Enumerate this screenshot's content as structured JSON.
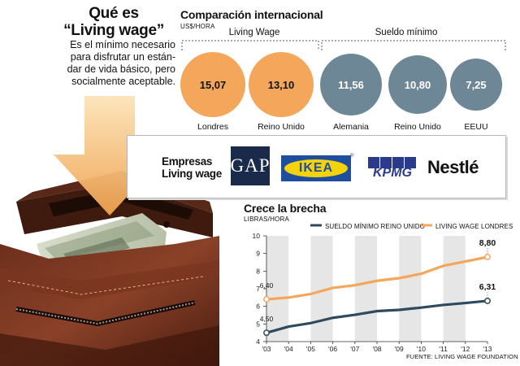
{
  "intro": {
    "title_line1": "Qué es",
    "title_line2": "“Living wage”",
    "description_lines": [
      "Es el mínimo necesario",
      "para disfrutar un están-",
      "dar de vida básico, pero",
      "socialmente aceptable."
    ]
  },
  "comparison": {
    "title": "Comparación internacional",
    "unit": "US$/HORA",
    "groups": {
      "living_wage": "Living Wage",
      "minimum_wage": "Sueldo mínimo"
    },
    "items": [
      {
        "label": "Londres",
        "value": "15,07",
        "group": "living_wage"
      },
      {
        "label": "Reino Unido",
        "value": "13,10",
        "group": "living_wage"
      },
      {
        "label": "Alemania",
        "value": "11,56",
        "group": "minimum_wage"
      },
      {
        "label": "Reino Unido",
        "value": "10,80",
        "group": "minimum_wage"
      },
      {
        "label": "EEUU",
        "value": "7,25",
        "group": "minimum_wage"
      }
    ]
  },
  "companies": {
    "label_line1": "Empresas",
    "label_line2": "Living wage",
    "logos": [
      "GAP",
      "IKEA",
      "KPMG",
      "Nestlé"
    ]
  },
  "colors": {
    "orange": "#f4a65a",
    "navy": "#2f4a5e",
    "gray_circle": "#6e8797",
    "band": "#e6e6e6"
  },
  "chart_data": {
    "type": "line",
    "title": "Crece la brecha",
    "unit": "LIBRAS/HORA",
    "x": [
      "'03",
      "'04",
      "'05",
      "'06",
      "'07",
      "'08",
      "'09",
      "'10",
      "'11",
      "'12",
      "'13"
    ],
    "ylim": [
      4,
      10
    ],
    "yticks": [
      "4",
      "5",
      "6",
      "7",
      "8",
      "9",
      "10"
    ],
    "series": [
      {
        "name": "SUELDO MÍNIMO REINO UNIDO",
        "color": "#2f4a5e",
        "values": [
          4.5,
          4.85,
          5.05,
          5.35,
          5.52,
          5.73,
          5.8,
          5.93,
          6.08,
          6.19,
          6.31
        ]
      },
      {
        "name": "LIVING WAGE LONDRES",
        "color": "#f4a65a",
        "values": [
          6.4,
          6.5,
          6.7,
          7.05,
          7.2,
          7.45,
          7.6,
          7.85,
          8.3,
          8.55,
          8.8
        ]
      }
    ],
    "annotations": [
      {
        "series": 1,
        "index": 0,
        "text": "6,40"
      },
      {
        "series": 0,
        "index": 0,
        "text": "4,50"
      },
      {
        "series": 1,
        "index": 10,
        "text": "8,80"
      },
      {
        "series": 0,
        "index": 10,
        "text": "6,31"
      }
    ],
    "grid": "vertical bands",
    "legend": "top"
  },
  "source": "FUENTE: LIVING WAGE FOUNDATION"
}
